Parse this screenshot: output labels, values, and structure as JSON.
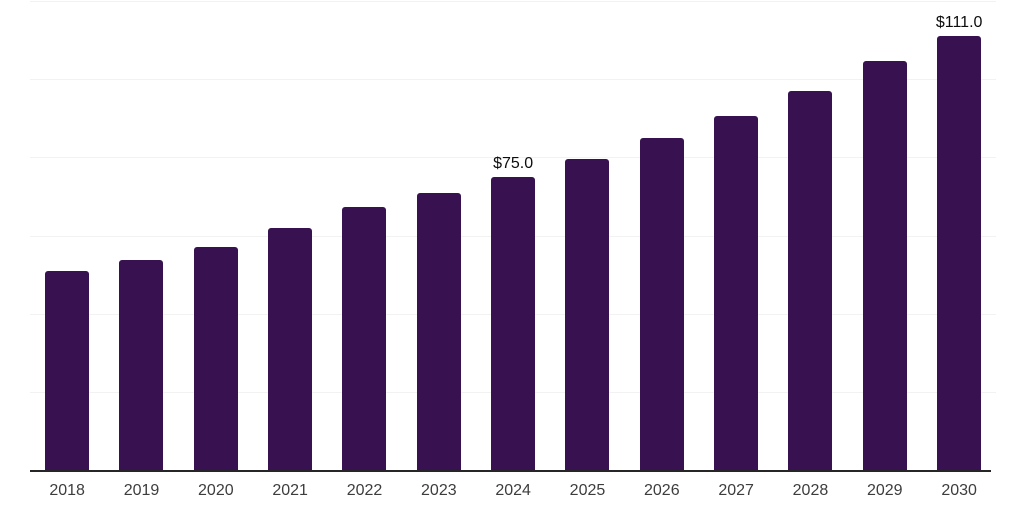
{
  "chart_data": {
    "type": "bar",
    "title": "",
    "xlabel": "",
    "ylabel": "",
    "categories": [
      "2018",
      "2019",
      "2020",
      "2021",
      "2022",
      "2023",
      "2024",
      "2025",
      "2026",
      "2027",
      "2028",
      "2029",
      "2030"
    ],
    "values": [
      51.0,
      53.8,
      57.1,
      62.0,
      67.2,
      71.0,
      75.0,
      79.6,
      84.9,
      90.6,
      96.9,
      104.7,
      111.0
    ],
    "data_labels": {
      "2024": "$75.0",
      "2030": "$111.0"
    },
    "ylim": [
      0,
      120
    ],
    "gridline_values": [
      20,
      40,
      60,
      80,
      100,
      120
    ],
    "grid": "horizontal",
    "legend": "none",
    "y_axis_labels_visible": false,
    "colors": {
      "bar": "#371150",
      "axis_line": "#262626",
      "gridline": "#f2f2f2",
      "tick_label": "#3d3d3d",
      "data_label": "#0d0d0d",
      "background": "#ffffff"
    }
  }
}
